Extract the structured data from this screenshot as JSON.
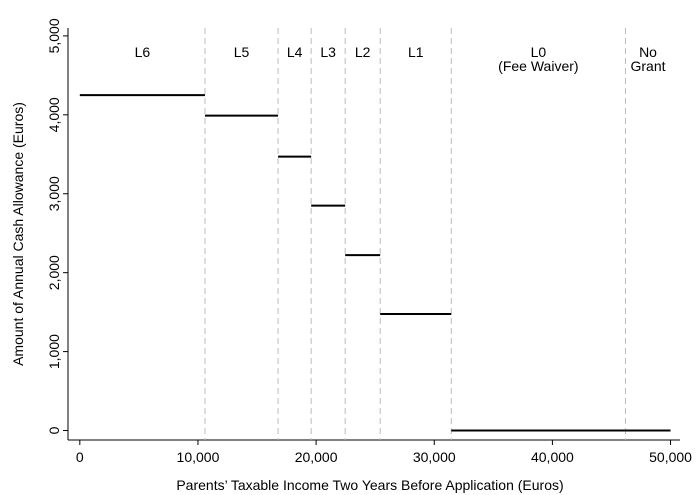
{
  "chart_data": {
    "type": "step",
    "x_label": "Parents’ Taxable Income Two Years Before Application (Euros)",
    "y_label": "Amount of Annual Cash Allowance (Euros)",
    "xlim": [
      -1000,
      50800
    ],
    "ylim": [
      -120,
      5100
    ],
    "xticks": [
      0,
      {
        "value": 10000,
        "label": "10,000"
      },
      {
        "value": 20000,
        "label": "20,000"
      },
      {
        "value": 30000,
        "label": "30,000"
      },
      {
        "value": 40000,
        "label": "40,000"
      },
      {
        "value": 50000,
        "label": "50,000"
      }
    ],
    "yticks": [
      0,
      {
        "value": 1000,
        "label": "1,000"
      },
      {
        "value": 2000,
        "label": "2,000"
      },
      {
        "value": 3000,
        "label": "3,000"
      },
      {
        "value": 4000,
        "label": "4,000"
      },
      {
        "value": 5000,
        "label": "5,000"
      }
    ],
    "color": "#000000",
    "boundaries": [
      10594,
      16780,
      19580,
      22460,
      25424,
      31440,
      46186
    ],
    "bands": [
      [
        "L6"
      ],
      [
        "L5"
      ],
      [
        "L4"
      ],
      [
        "L3"
      ],
      [
        "L2"
      ],
      [
        "L1"
      ],
      [
        "L0",
        "(Fee Waiver)"
      ],
      [
        "No",
        "Grant"
      ]
    ],
    "segments": [
      {
        "x0": 0,
        "x1": 10594,
        "value": 4250
      },
      {
        "x0": 10594,
        "x1": 16780,
        "value": 3990
      },
      {
        "x0": 16780,
        "x1": 19580,
        "value": 3470
      },
      {
        "x0": 19580,
        "x1": 22460,
        "value": 2850
      },
      {
        "x0": 22460,
        "x1": 25424,
        "value": 2222
      },
      {
        "x0": 25424,
        "x1": 31440,
        "value": 1477
      },
      {
        "x0": 31440,
        "x1": 50000,
        "value": 0
      }
    ]
  }
}
